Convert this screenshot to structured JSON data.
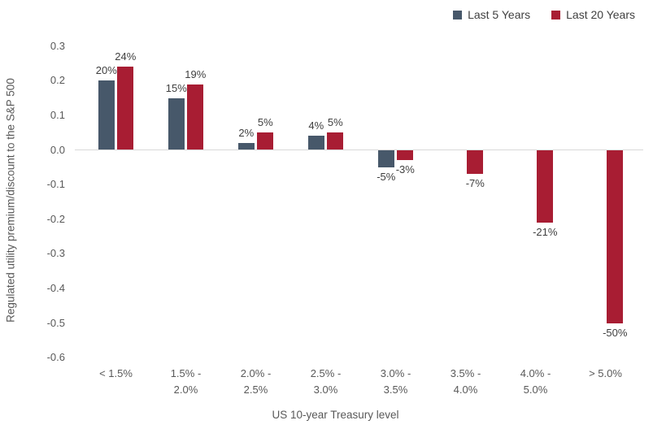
{
  "chart_data": {
    "type": "bar",
    "title": "",
    "xlabel": "US 10-year Treasury level",
    "ylabel": "Regulated utility premium/discount to the S&P 500",
    "categories": [
      "< 1.5%",
      "1.5% -\n2.0%",
      "2.0% -\n2.5%",
      "2.5% -\n3.0%",
      "3.0% -\n3.5%",
      "3.5% -\n4.0%",
      "4.0% -\n5.0%",
      "> 5.0%"
    ],
    "series": [
      {
        "name": "Last 5 Years",
        "color": "#47586a",
        "values": [
          0.2,
          0.15,
          0.02,
          0.04,
          -0.05,
          null,
          null,
          null
        ],
        "labels": [
          "20%",
          "15%",
          "2%",
          "4%",
          "-5%",
          "",
          "",
          ""
        ]
      },
      {
        "name": "Last 20 Years",
        "color": "#a81d33",
        "values": [
          0.24,
          0.19,
          0.05,
          0.05,
          -0.03,
          -0.07,
          -0.21,
          -0.5
        ],
        "labels": [
          "24%",
          "19%",
          "5%",
          "5%",
          "-3%",
          "-7%",
          "-21%",
          "-50%"
        ]
      }
    ],
    "ylim": [
      -0.6,
      0.3
    ],
    "yticks": [
      "0.3",
      "0.2",
      "0.1",
      "0.0",
      "-0.1",
      "-0.2",
      "-0.3",
      "-0.4",
      "-0.5",
      "-0.6"
    ],
    "ytick_values": [
      0.3,
      0.2,
      0.1,
      0.0,
      -0.1,
      -0.2,
      -0.3,
      -0.4,
      -0.5,
      -0.6
    ],
    "legend_position": "top-right",
    "grid": false,
    "axis_line_color": "#d9d9d9",
    "tick_text_color": "#595959",
    "data_label_color": "#3f3f3f"
  }
}
